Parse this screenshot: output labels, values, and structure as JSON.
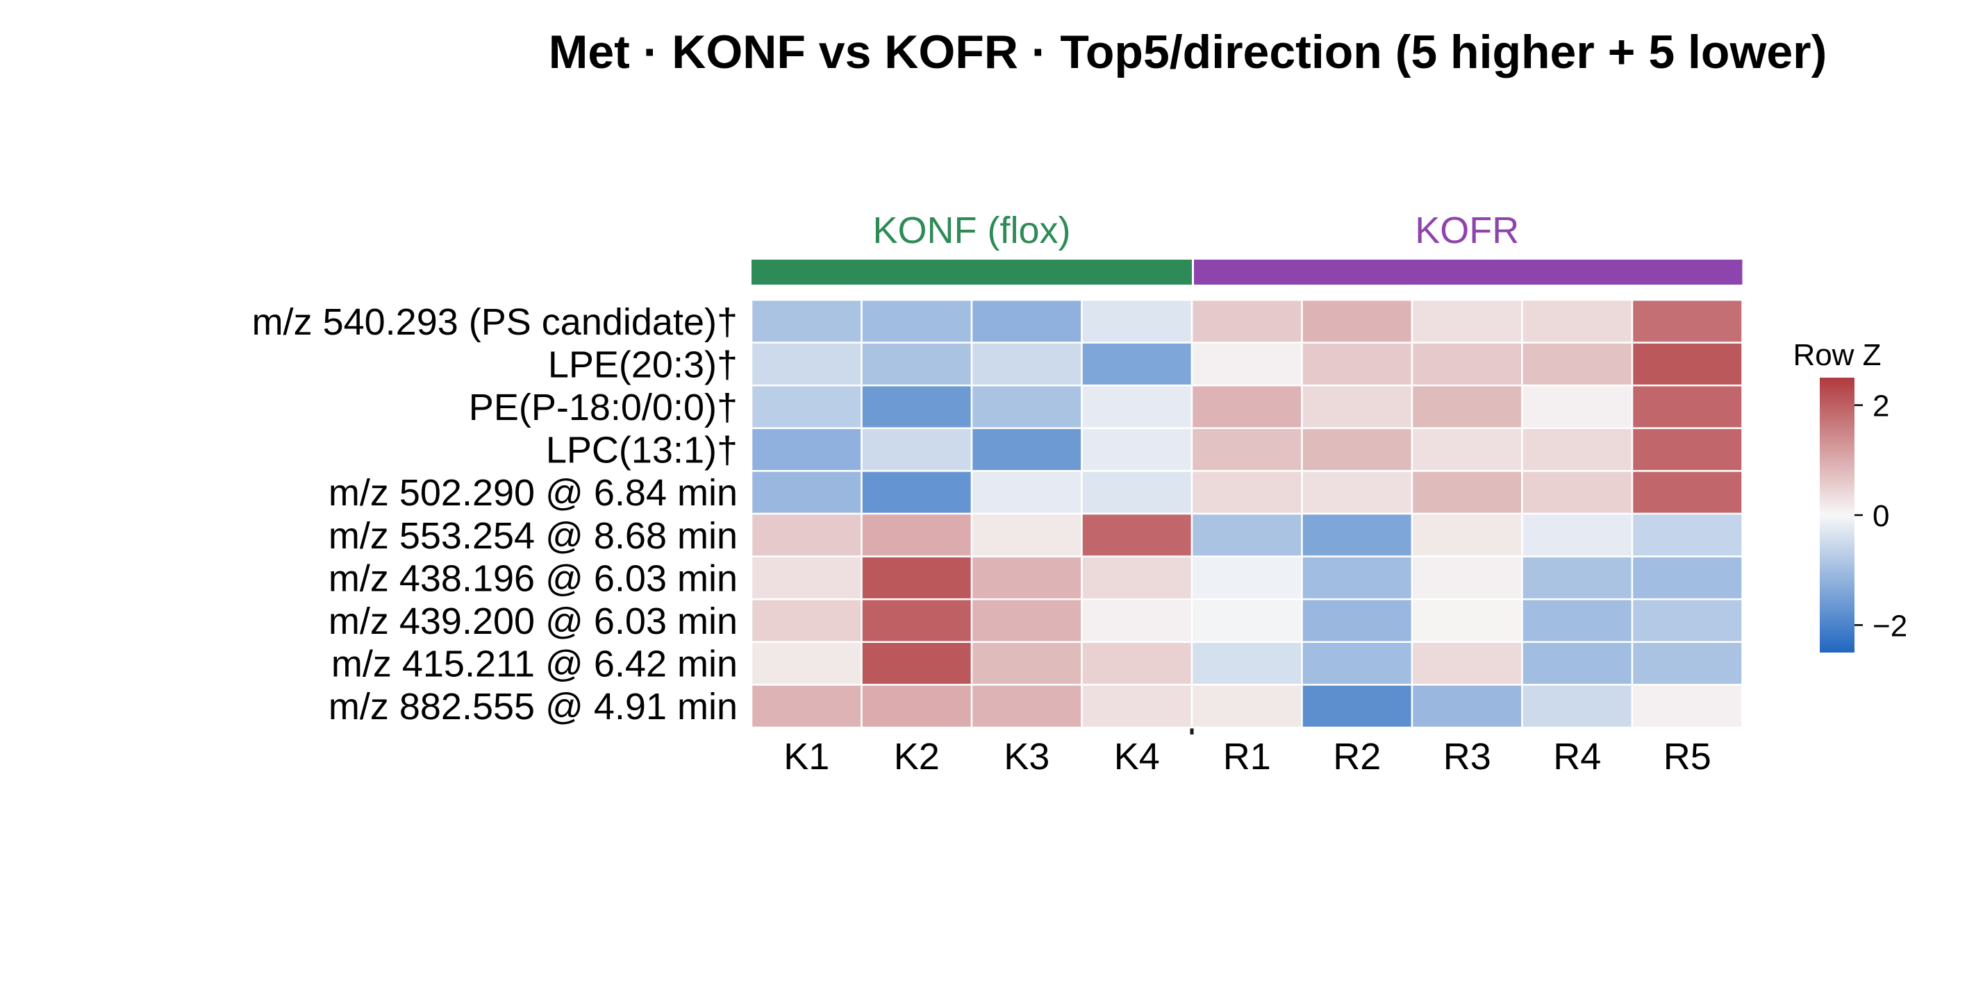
{
  "chart_data": {
    "type": "heatmap",
    "title": "Met · KONF vs KOFR · Top5/direction (5 higher + 5 lower)",
    "groups": [
      {
        "name": "KONF (flox)",
        "color": "#2e8b57",
        "columns": [
          "K1",
          "K2",
          "K3",
          "K4"
        ]
      },
      {
        "name": "KOFR",
        "color": "#8e44ad",
        "columns": [
          "R1",
          "R2",
          "R3",
          "R4",
          "R5"
        ]
      }
    ],
    "columns": [
      "K1",
      "K2",
      "K3",
      "K4",
      "R1",
      "R2",
      "R3",
      "R4",
      "R5"
    ],
    "rows": [
      "m/z 540.293 (PS candidate)†",
      "LPE(20:3)†",
      "PE(P-18:0/0:0)†",
      "LPC(13:1)†",
      "m/z 502.290 @ 6.84 min",
      "m/z 553.254 @ 8.68 min",
      "m/z 438.196 @ 6.03 min",
      "m/z 439.200 @ 6.03 min",
      "m/z 415.211 @ 6.42 min",
      "m/z 882.555 @ 4.91 min"
    ],
    "values": [
      [
        -0.9,
        -1.0,
        -1.2,
        -0.3,
        0.6,
        0.9,
        0.3,
        0.4,
        1.8
      ],
      [
        -0.5,
        -0.9,
        -0.5,
        -1.4,
        0.1,
        0.6,
        0.6,
        0.7,
        2.1
      ],
      [
        -0.7,
        -1.6,
        -0.9,
        -0.2,
        0.9,
        0.4,
        0.8,
        0.1,
        1.9
      ],
      [
        -1.2,
        -0.5,
        -1.6,
        -0.2,
        0.7,
        0.8,
        0.3,
        0.4,
        1.9
      ],
      [
        -1.1,
        -1.7,
        -0.2,
        -0.3,
        0.4,
        0.3,
        0.8,
        0.5,
        1.9
      ],
      [
        0.6,
        1.0,
        0.2,
        1.9,
        -0.9,
        -1.4,
        0.2,
        -0.2,
        -0.6
      ],
      [
        0.3,
        2.1,
        0.9,
        0.4,
        -0.1,
        -1.0,
        0.1,
        -0.9,
        -1.0
      ],
      [
        0.5,
        2.0,
        0.9,
        0.1,
        -0.05,
        -1.1,
        0.05,
        -1.0,
        -0.8
      ],
      [
        0.2,
        2.1,
        0.8,
        0.5,
        -0.4,
        -1.0,
        0.4,
        -1.0,
        -0.9
      ],
      [
        0.9,
        1.0,
        0.9,
        0.3,
        0.2,
        -1.8,
        -1.1,
        -0.5,
        0.1
      ]
    ],
    "colorbar": {
      "label": "Row Z",
      "range": [
        -2.5,
        2.5
      ],
      "ticks": [
        2,
        0,
        -2
      ],
      "tick_labels": [
        "2",
        "0",
        "−2"
      ],
      "colors": {
        "low": "#2166c0",
        "mid": "#f7f7f7",
        "high": "#b03a3f"
      }
    },
    "grid": false,
    "legend_position": "right"
  }
}
